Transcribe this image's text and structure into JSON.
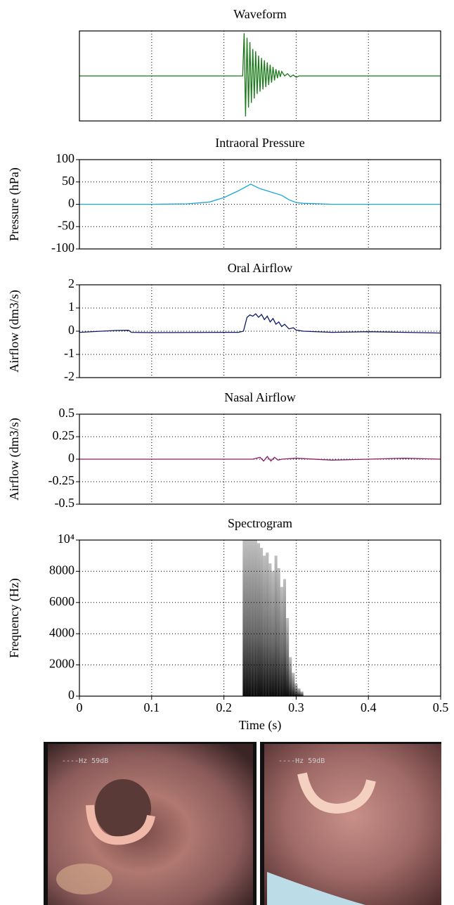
{
  "chart_data": [
    {
      "type": "line",
      "title": "Waveform",
      "color": "#1a7a1a",
      "xlim": [
        0,
        0.5
      ],
      "xticks": [
        0,
        0.1,
        0.2,
        0.3,
        0.4,
        0.5
      ],
      "ylim": [
        -1,
        1
      ],
      "grid": true,
      "x": [
        0,
        0.1,
        0.2,
        0.226,
        0.228,
        0.23,
        0.232,
        0.234,
        0.236,
        0.238,
        0.24,
        0.242,
        0.244,
        0.246,
        0.248,
        0.25,
        0.252,
        0.254,
        0.256,
        0.258,
        0.26,
        0.262,
        0.264,
        0.266,
        0.268,
        0.27,
        0.272,
        0.274,
        0.276,
        0.278,
        0.28,
        0.284,
        0.288,
        0.292,
        0.296,
        0.3,
        0.304,
        0.31,
        0.4,
        0.5
      ],
      "values": [
        0,
        0,
        0,
        0,
        0.95,
        -0.9,
        0.85,
        -0.7,
        0.75,
        -0.6,
        0.6,
        -0.5,
        0.55,
        -0.4,
        0.45,
        -0.35,
        0.4,
        -0.3,
        0.35,
        -0.25,
        0.3,
        -0.2,
        0.25,
        -0.15,
        0.2,
        -0.1,
        0.15,
        -0.05,
        0.12,
        -0.02,
        0.1,
        0,
        0.05,
        -0.02,
        0.02,
        -0.03,
        0,
        0,
        0,
        0
      ]
    },
    {
      "type": "line",
      "title": "Intraoral Pressure",
      "ylabel": "Pressure (hPa)",
      "color": "#1aa7d8",
      "xlim": [
        0,
        0.5
      ],
      "xticks": [
        0,
        0.1,
        0.2,
        0.3,
        0.4,
        0.5
      ],
      "ylim": [
        -100,
        100
      ],
      "yticks": [
        -100,
        -50,
        0,
        50,
        100
      ],
      "grid": true,
      "x": [
        0,
        0.1,
        0.15,
        0.18,
        0.2,
        0.22,
        0.237,
        0.25,
        0.27,
        0.28,
        0.29,
        0.3,
        0.31,
        0.35,
        0.5
      ],
      "values": [
        0,
        0,
        1,
        5,
        15,
        30,
        45,
        35,
        25,
        20,
        10,
        4,
        2,
        0,
        0
      ]
    },
    {
      "type": "line",
      "title": "Oral Airflow",
      "ylabel": "Airflow (dm3/s)",
      "color": "#0b1a66",
      "xlim": [
        0,
        0.5
      ],
      "xticks": [
        0,
        0.1,
        0.2,
        0.3,
        0.4,
        0.5
      ],
      "ylim": [
        -2,
        2
      ],
      "yticks": [
        -2,
        -1,
        0,
        1,
        2
      ],
      "grid": true,
      "x": [
        0,
        0.05,
        0.068,
        0.072,
        0.1,
        0.2,
        0.22,
        0.227,
        0.232,
        0.236,
        0.24,
        0.244,
        0.248,
        0.252,
        0.256,
        0.26,
        0.264,
        0.268,
        0.272,
        0.276,
        0.28,
        0.284,
        0.29,
        0.296,
        0.3,
        0.31,
        0.35,
        0.4,
        0.45,
        0.5
      ],
      "values": [
        -0.05,
        0.03,
        0.04,
        -0.05,
        -0.06,
        -0.05,
        -0.05,
        0,
        0.6,
        0.7,
        0.65,
        0.75,
        0.6,
        0.72,
        0.5,
        0.65,
        0.4,
        0.55,
        0.3,
        0.4,
        0.2,
        0.3,
        0.1,
        0.15,
        0.05,
        0,
        -0.05,
        -0.02,
        -0.05,
        -0.08
      ]
    },
    {
      "type": "line",
      "title": "Nasal Airflow",
      "ylabel": "Airflow (dm3/s)",
      "color": "#8a1a6b",
      "xlim": [
        0,
        0.5
      ],
      "xticks": [
        0,
        0.1,
        0.2,
        0.3,
        0.4,
        0.5
      ],
      "ylim": [
        -0.5,
        0.5
      ],
      "yticks": [
        -0.5,
        -0.25,
        0,
        0.25,
        0.5
      ],
      "grid": true,
      "x": [
        0,
        0.1,
        0.2,
        0.24,
        0.25,
        0.255,
        0.26,
        0.265,
        0.27,
        0.275,
        0.28,
        0.3,
        0.35,
        0.4,
        0.45,
        0.5
      ],
      "values": [
        0,
        0,
        0,
        0,
        0.02,
        -0.02,
        0.03,
        -0.02,
        0.02,
        -0.01,
        0,
        0.01,
        -0.01,
        0,
        0.01,
        0
      ]
    },
    {
      "type": "spectrogram",
      "title": "Spectrogram",
      "ylabel": "Frequency (Hz)",
      "xlabel": "Time (s)",
      "color": "#000000",
      "xlim": [
        0,
        0.5
      ],
      "xticks": [
        0,
        0.1,
        0.2,
        0.3,
        0.4,
        0.5
      ],
      "ylim": [
        0,
        10000
      ],
      "yticks": [
        0,
        2000,
        4000,
        6000,
        8000,
        {
          "value": 10000,
          "label": "10⁴"
        }
      ],
      "grid": true,
      "x": [
        0.226,
        0.23,
        0.234,
        0.238,
        0.242,
        0.246,
        0.25,
        0.254,
        0.258,
        0.262,
        0.266,
        0.27,
        0.274,
        0.278,
        0.282,
        0.286,
        0.29,
        0.294,
        0.298,
        0.302,
        0.306
      ],
      "values": [
        10000,
        10000,
        10000,
        10000,
        10000,
        9800,
        9500,
        9000,
        9200,
        8500,
        8000,
        9000,
        8200,
        7000,
        7500,
        5000,
        2500,
        1500,
        800,
        500,
        300
      ]
    }
  ],
  "images": [
    {
      "overlay": "----Hz 59dB"
    },
    {
      "overlay": "----Hz 59dB"
    }
  ]
}
